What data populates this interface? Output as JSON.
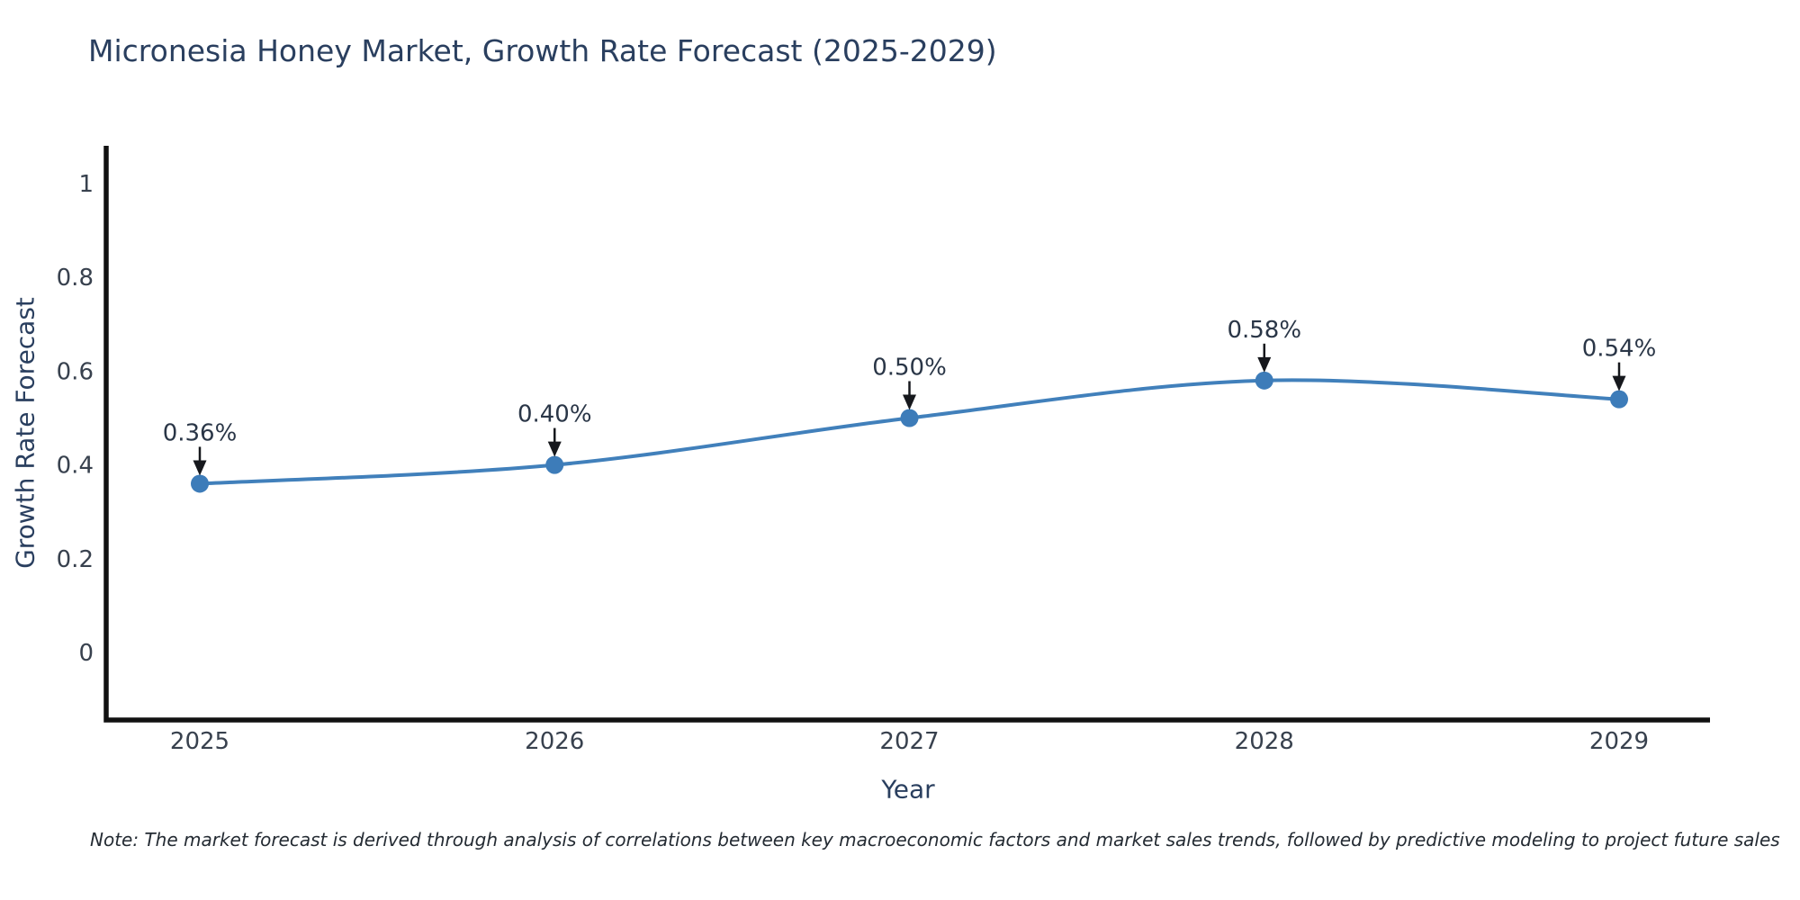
{
  "figure": {
    "title": "Micronesia Honey Market, Growth Rate Forecast (2025-2029)",
    "note": "Note: The market forecast is derived through analysis of correlations between key macroeconomic factors and market sales trends, followed by predictive modeling to project future sales"
  },
  "chart_data": {
    "type": "line",
    "line_shape": "spline",
    "title": "Micronesia Honey Market, Growth Rate Forecast (2025-2029)",
    "xlabel": "Year",
    "ylabel": "Growth Rate Forecast",
    "x": [
      2025,
      2026,
      2027,
      2028,
      2029
    ],
    "series": [
      {
        "name": "Growth Rate Forecast",
        "values": [
          0.36,
          0.4,
          0.5,
          0.58,
          0.54
        ]
      }
    ],
    "point_labels": [
      "0.36%",
      "0.40%",
      "0.50%",
      "0.58%",
      "0.54%"
    ],
    "yticks": [
      0,
      0.2,
      0.4,
      0.6,
      0.8,
      1
    ],
    "ylim": [
      -0.14,
      1.08
    ],
    "grid": false,
    "legend": "none",
    "annotation_style": "arrow-down-to-point",
    "colors": {
      "line": "#4180bb",
      "marker": "#3d7cb9",
      "axis": "#111111",
      "arrow": "#16181d",
      "title_text": "#2a3f5f",
      "tick_text": "#38414e",
      "annotation_text": "#2a3647",
      "note_text": "#242b33",
      "background": "#ffffff"
    }
  }
}
